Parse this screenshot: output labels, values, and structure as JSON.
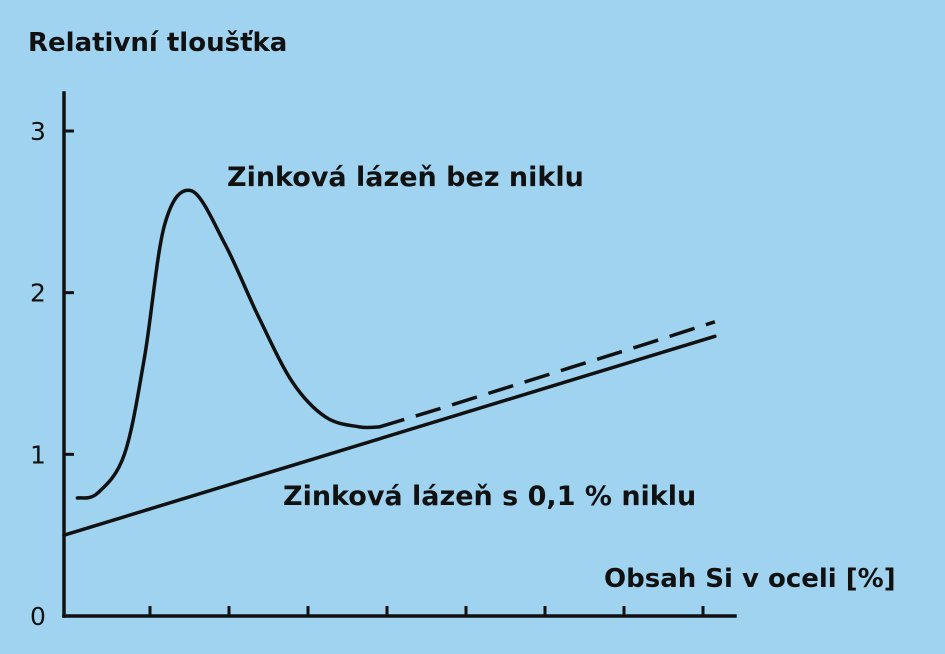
{
  "chart_data": {
    "type": "line",
    "ylabel": "Relativní tloušťka",
    "xlabel": "Obsah Si v oceli [%]",
    "y_ticks": [
      "0",
      "1",
      "2",
      "3"
    ],
    "ylim": [
      0,
      3
    ],
    "xlim": [
      0,
      1
    ],
    "x_minor_ticks": 8,
    "grid": false,
    "series": [
      {
        "name": "Zinková lázeň bez niklu",
        "style": "solid",
        "x": [
          0.02,
          0.05,
          0.09,
          0.12,
          0.15,
          0.19,
          0.24,
          0.29,
          0.34,
          0.39,
          0.44,
          0.47
        ],
        "y": [
          0.73,
          0.76,
          1.0,
          1.6,
          2.42,
          2.63,
          2.3,
          1.85,
          1.45,
          1.23,
          1.17,
          1.17
        ]
      },
      {
        "name": "Zinková lázeň bez niklu",
        "style": "dashed",
        "x": [
          0.47,
          0.55,
          0.65,
          0.75,
          0.85,
          0.97
        ],
        "y": [
          1.17,
          1.27,
          1.4,
          1.53,
          1.66,
          1.82
        ]
      },
      {
        "name": "Zinková lázeň s 0,1 % niklu",
        "style": "solid",
        "x": [
          0.0,
          0.97
        ],
        "y": [
          0.5,
          1.73
        ]
      }
    ],
    "annotations": [
      {
        "text": "Zinková lázeň bez niklu"
      },
      {
        "text": "Zinková lázeň s 0,1 % niklu"
      }
    ]
  }
}
